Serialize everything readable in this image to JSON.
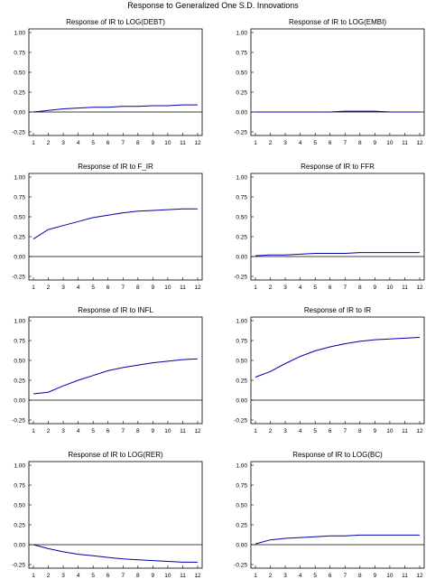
{
  "figure": {
    "title": "Response to Generalized One S.D. Innovations"
  },
  "colors": {
    "line": "#0000aa",
    "axis": "#000000",
    "zero_line": "#000000",
    "text": "#000000",
    "background": "#ffffff"
  },
  "chart_data": [
    {
      "type": "line",
      "title": "Response of IR to LOG(DEBT)",
      "x": [
        1,
        2,
        3,
        4,
        5,
        6,
        7,
        8,
        9,
        10,
        11,
        12
      ],
      "ylim": [
        -0.25,
        1.0
      ],
      "yticks": [
        "1.00",
        "0.75",
        "0.50",
        "0.25",
        "0.00",
        "-0.25"
      ],
      "xticks": [
        "1",
        "2",
        "3",
        "4",
        "5",
        "6",
        "7",
        "8",
        "9",
        "10",
        "11",
        "12"
      ],
      "series": [
        {
          "values": [
            0.0,
            0.02,
            0.04,
            0.05,
            0.06,
            0.06,
            0.07,
            0.07,
            0.08,
            0.08,
            0.09,
            0.09
          ]
        }
      ]
    },
    {
      "type": "line",
      "title": "Response of IR to LOG(EMBI)",
      "x": [
        1,
        2,
        3,
        4,
        5,
        6,
        7,
        8,
        9,
        10,
        11,
        12
      ],
      "ylim": [
        -0.25,
        1.0
      ],
      "yticks": [
        "1.00",
        "0.75",
        "0.50",
        "0.25",
        "0.00",
        "-0.25"
      ],
      "xticks": [
        "1",
        "2",
        "3",
        "4",
        "5",
        "6",
        "7",
        "8",
        "9",
        "10",
        "11",
        "12"
      ],
      "series": [
        {
          "values": [
            0.0,
            0.0,
            0.0,
            0.0,
            0.0,
            0.0,
            0.01,
            0.01,
            0.01,
            0.0,
            0.0,
            0.0
          ]
        }
      ]
    },
    {
      "type": "line",
      "title": "Response of IR to F_IR",
      "x": [
        1,
        2,
        3,
        4,
        5,
        6,
        7,
        8,
        9,
        10,
        11,
        12
      ],
      "ylim": [
        -0.25,
        1.0
      ],
      "yticks": [
        "1.00",
        "0.75",
        "0.50",
        "0.25",
        "0.00",
        "-0.25"
      ],
      "xticks": [
        "1",
        "2",
        "3",
        "4",
        "5",
        "6",
        "7",
        "8",
        "9",
        "10",
        "11",
        "12"
      ],
      "series": [
        {
          "values": [
            0.22,
            0.34,
            0.39,
            0.44,
            0.49,
            0.52,
            0.55,
            0.57,
            0.58,
            0.59,
            0.6,
            0.6
          ]
        }
      ]
    },
    {
      "type": "line",
      "title": "Response of IR to FFR",
      "x": [
        1,
        2,
        3,
        4,
        5,
        6,
        7,
        8,
        9,
        10,
        11,
        12
      ],
      "ylim": [
        -0.25,
        1.0
      ],
      "yticks": [
        "1.00",
        "0.75",
        "0.50",
        "0.25",
        "0.00",
        "-0.25"
      ],
      "xticks": [
        "1",
        "2",
        "3",
        "4",
        "5",
        "6",
        "7",
        "8",
        "9",
        "10",
        "11",
        "12"
      ],
      "series": [
        {
          "values": [
            0.01,
            0.02,
            0.02,
            0.03,
            0.04,
            0.04,
            0.04,
            0.05,
            0.05,
            0.05,
            0.05,
            0.05
          ]
        }
      ]
    },
    {
      "type": "line",
      "title": "Response of IR to INFL",
      "x": [
        1,
        2,
        3,
        4,
        5,
        6,
        7,
        8,
        9,
        10,
        11,
        12
      ],
      "ylim": [
        -0.25,
        1.0
      ],
      "yticks": [
        "1.00",
        "0.75",
        "0.50",
        "0.25",
        "0.00",
        "-0.25"
      ],
      "xticks": [
        "1",
        "2",
        "3",
        "4",
        "5",
        "6",
        "7",
        "8",
        "9",
        "10",
        "11",
        "12"
      ],
      "series": [
        {
          "values": [
            0.08,
            0.1,
            0.18,
            0.25,
            0.31,
            0.37,
            0.41,
            0.44,
            0.47,
            0.49,
            0.51,
            0.52
          ]
        }
      ]
    },
    {
      "type": "line",
      "title": "Response of IR to IR",
      "x": [
        1,
        2,
        3,
        4,
        5,
        6,
        7,
        8,
        9,
        10,
        11,
        12
      ],
      "ylim": [
        -0.25,
        1.0
      ],
      "yticks": [
        "1.00",
        "0.75",
        "0.50",
        "0.25",
        "0.00",
        "-0.25"
      ],
      "xticks": [
        "1",
        "2",
        "3",
        "4",
        "5",
        "6",
        "7",
        "8",
        "9",
        "10",
        "11",
        "12"
      ],
      "series": [
        {
          "values": [
            0.29,
            0.36,
            0.46,
            0.55,
            0.62,
            0.67,
            0.71,
            0.74,
            0.76,
            0.77,
            0.78,
            0.79
          ]
        }
      ]
    },
    {
      "type": "line",
      "title": "Response of IR to LOG(RER)",
      "x": [
        1,
        2,
        3,
        4,
        5,
        6,
        7,
        8,
        9,
        10,
        11,
        12
      ],
      "ylim": [
        -0.25,
        1.0
      ],
      "yticks": [
        "1.00",
        "0.75",
        "0.50",
        "0.25",
        "0.00",
        "-0.25"
      ],
      "xticks": [
        "1",
        "2",
        "3",
        "4",
        "5",
        "6",
        "7",
        "8",
        "9",
        "10",
        "11",
        "12"
      ],
      "series": [
        {
          "values": [
            0.0,
            -0.05,
            -0.09,
            -0.12,
            -0.14,
            -0.16,
            -0.18,
            -0.19,
            -0.2,
            -0.21,
            -0.22,
            -0.22
          ]
        }
      ]
    },
    {
      "type": "line",
      "title": "Response of IR to LOG(BC)",
      "x": [
        1,
        2,
        3,
        4,
        5,
        6,
        7,
        8,
        9,
        10,
        11,
        12
      ],
      "ylim": [
        -0.25,
        1.0
      ],
      "yticks": [
        "1.00",
        "0.75",
        "0.50",
        "0.25",
        "0.00",
        "-0.25"
      ],
      "xticks": [
        "1",
        "2",
        "3",
        "4",
        "5",
        "6",
        "7",
        "8",
        "9",
        "10",
        "11",
        "12"
      ],
      "series": [
        {
          "values": [
            0.01,
            0.06,
            0.08,
            0.09,
            0.1,
            0.11,
            0.11,
            0.12,
            0.12,
            0.12,
            0.12,
            0.12
          ]
        }
      ]
    }
  ]
}
